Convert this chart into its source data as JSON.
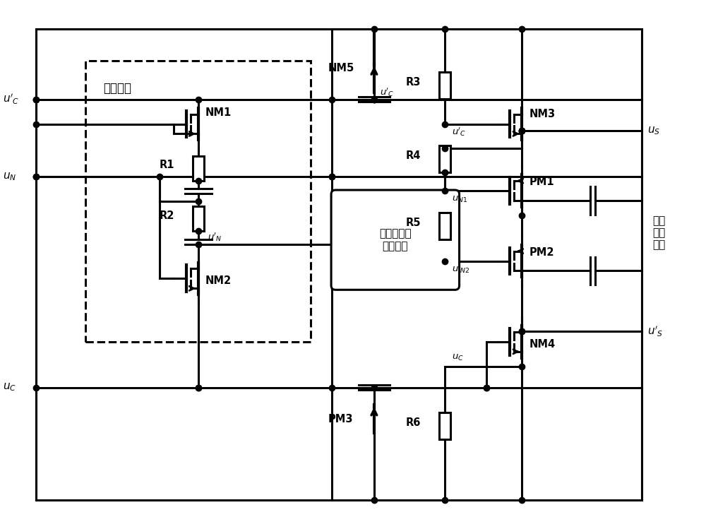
{
  "bg_color": "#ffffff",
  "lc": "#000000",
  "lw": 2.2,
  "lw2": 3.0,
  "fig_w": 10.0,
  "fig_h": 7.49,
  "labels": {
    "fen_ya": "分压电路",
    "zhuan_huan": "窄脉冲极性\n翻转电路",
    "xiao_chu": "电平\n消除\n电路",
    "NM1": "NM1",
    "NM2": "NM2",
    "NM3": "NM3",
    "NM4": "NM4",
    "NM5": "NM5",
    "PM1": "PM1",
    "PM2": "PM2",
    "PM3": "PM3",
    "R1": "R1",
    "R2": "R2",
    "R3": "R3",
    "R4": "R4",
    "R5": "R5",
    "R6": "R6"
  }
}
